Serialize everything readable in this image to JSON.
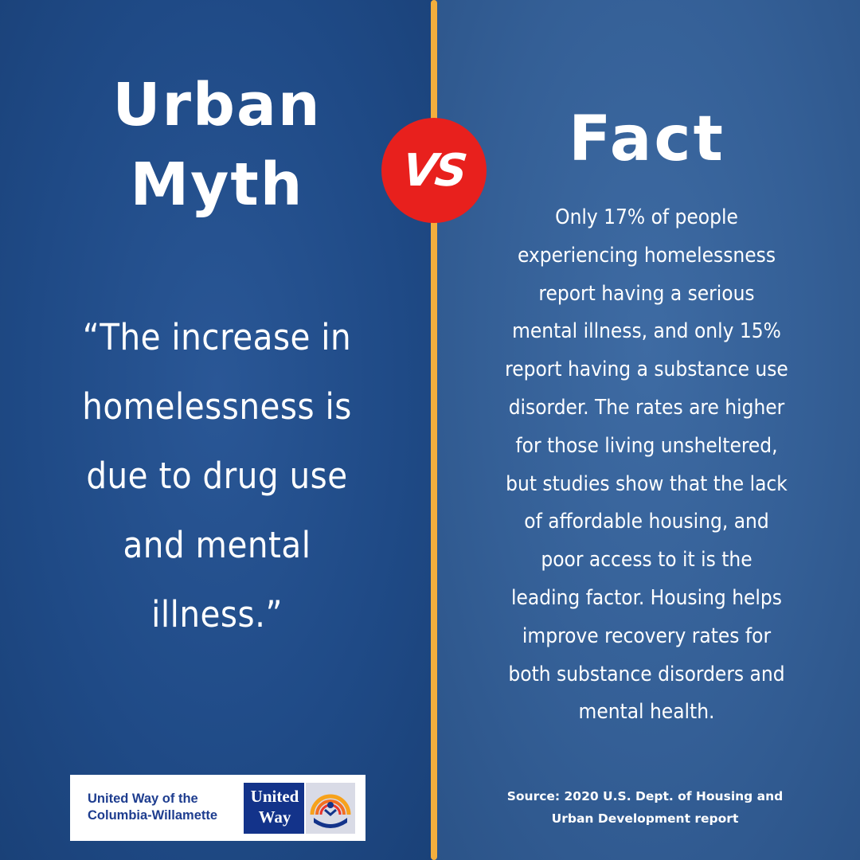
{
  "myth": {
    "title_line1": "Urban",
    "title_line2": "Myth",
    "quote_line1": "“The increase in",
    "quote_line2": "homelessness is",
    "quote_line3": "due to drug use",
    "quote_line4": "and mental",
    "quote_line5": "illness.”"
  },
  "vs": {
    "label": "VS"
  },
  "fact": {
    "title": "Fact",
    "body_lines": [
      "Only 17% of people",
      "experiencing homelessness",
      "report having a serious",
      "mental illness, and only 15%",
      "report having a substance use",
      "disorder. The rates are higher",
      "for those living unsheltered,",
      "but studies show that the lack",
      "of affordable housing, and",
      "poor access to it is the",
      "leading factor. Housing helps",
      "improve recovery rates for",
      "both substance disorders and",
      "mental health."
    ],
    "source_line1": "Source: 2020 U.S. Dept. of Housing and",
    "source_line2": "Urban Development report"
  },
  "logo": {
    "org_line1": "United Way of the",
    "org_line2": "Columbia-Willamette",
    "mark_line1": "United",
    "mark_line2": "Way"
  },
  "colors": {
    "left_panel": "#1f4a86",
    "right_panel": "#345f96",
    "divider": "#f2ae3d",
    "vs_badge": "#e8201d",
    "logo_blue": "#13338a"
  }
}
